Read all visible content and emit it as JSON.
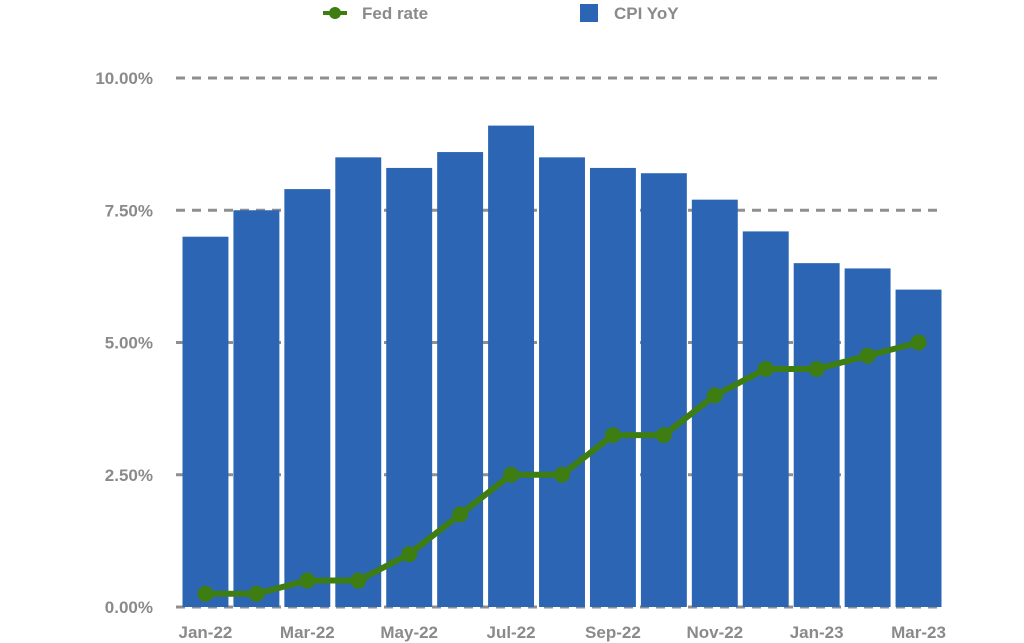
{
  "chart_data": {
    "type": "bar",
    "categories": [
      "Jan-22",
      "Feb-22",
      "Mar-22",
      "Apr-22",
      "May-22",
      "Jun-22",
      "Jul-22",
      "Aug-22",
      "Sep-22",
      "Oct-22",
      "Nov-22",
      "Dec-22",
      "Jan-23",
      "Feb-23",
      "Mar-23"
    ],
    "x_tick_labels": [
      "Jan-22",
      "Mar-22",
      "May-22",
      "Jul-22",
      "Sep-22",
      "Nov-22",
      "Jan-23",
      "Mar-23"
    ],
    "y_tick_labels": [
      "0.00%",
      "2.50%",
      "5.00%",
      "7.50%",
      "10.00%"
    ],
    "y_ticks": [
      0,
      2.5,
      5,
      7.5,
      10
    ],
    "ylim": [
      0,
      10
    ],
    "grid": true,
    "legend_position": "top",
    "series": [
      {
        "name": "CPI YoY",
        "type": "bar",
        "color": "#2b65b3",
        "values": [
          7.0,
          7.5,
          7.9,
          8.5,
          8.3,
          8.6,
          9.1,
          8.5,
          8.3,
          8.2,
          7.7,
          7.1,
          6.5,
          6.4,
          6.0
        ]
      },
      {
        "name": "Fed rate",
        "type": "line",
        "color": "#3e7d12",
        "values": [
          0.25,
          0.25,
          0.5,
          0.5,
          1.0,
          1.75,
          2.5,
          2.5,
          3.25,
          3.25,
          4.0,
          4.5,
          4.5,
          4.75,
          5.0
        ]
      }
    ],
    "legend": [
      {
        "name": "Fed rate",
        "marker": "line-dot",
        "color": "#3e7d12"
      },
      {
        "name": "CPI YoY",
        "marker": "square",
        "color": "#2b65b3"
      }
    ]
  }
}
